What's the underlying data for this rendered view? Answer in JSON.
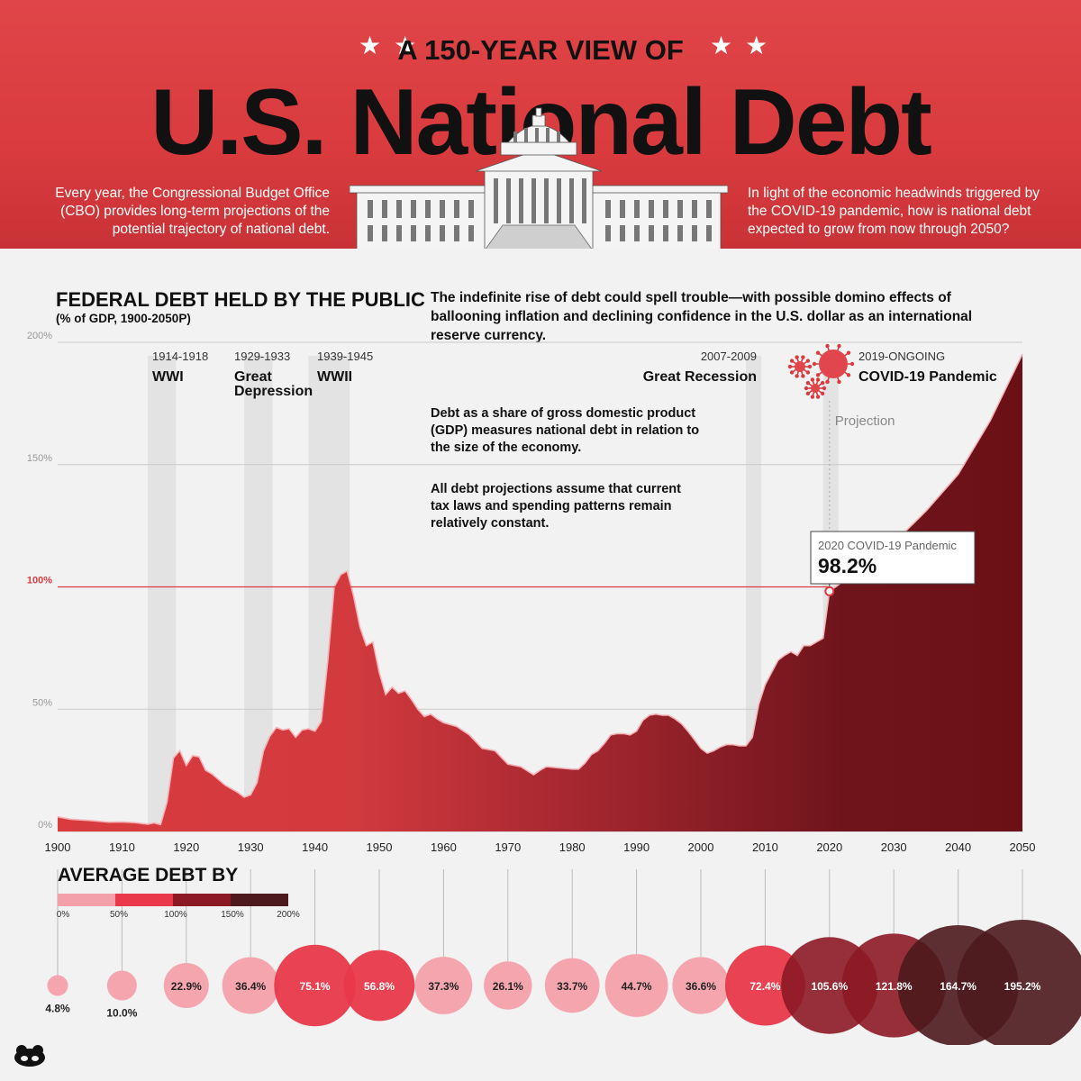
{
  "header": {
    "kicker": "A 150-YEAR VIEW OF",
    "title": "U.S. National Debt",
    "intro_left": "Every year, the Congressional Budget Office (CBO) provides long-term projections of the potential trajectory of national debt.",
    "intro_right": "In light of the economic headwinds triggered by the COVID-19 pandemic, how is national debt expected to grow from now through 2050?",
    "stars": "★★"
  },
  "chart_section": {
    "title": "FEDERAL DEBT HELD BY THE PUBLIC",
    "subtitle": "(% of GDP, 1900-2050P)",
    "headline_note": "The indefinite rise of debt could spell trouble—with possible domino effects of ballooning inflation and declining confidence in the U.S. dollar as an international reserve currency.",
    "note1": "Debt as a share of gross domestic product (GDP) measures national debt in relation to the size of the economy.",
    "note2": "All debt projections assume that current tax laws and spending patterns remain relatively constant.",
    "projection_label": "Projection",
    "callout_label": "2020 COVID-19 Pandemic",
    "callout_value": "98.2%"
  },
  "colors": {
    "accent": "#d93b3e",
    "dark": "#4a1217",
    "light_pink": "#f3a0aa",
    "pink": "#e8384a",
    "maroon": "#8c1a25",
    "very_dark": "#4d191d"
  },
  "chart_data": {
    "type": "area",
    "title": "FEDERAL DEBT HELD BY THE PUBLIC",
    "ylabel": "% of GDP",
    "xlim": [
      1900,
      2050
    ],
    "ylim": [
      0,
      200
    ],
    "x_ticks": [
      "1900",
      "1910",
      "1920",
      "1930",
      "1940",
      "1950",
      "1960",
      "1970",
      "1980",
      "1990",
      "2000",
      "2010",
      "2020",
      "2030",
      "2040",
      "2050"
    ],
    "y_ticks": [
      "0%",
      "50%",
      "100%",
      "150%",
      "200%"
    ],
    "reference_line": {
      "value": 100,
      "label": "100%"
    },
    "projection_start": 2020,
    "series": [
      {
        "name": "Federal debt held by the public",
        "x": [
          1900,
          1902,
          1905,
          1908,
          1910,
          1912,
          1914,
          1915,
          1916,
          1917,
          1918,
          1919,
          1920,
          1921,
          1922,
          1923,
          1924,
          1926,
          1928,
          1929,
          1930,
          1931,
          1932,
          1933,
          1934,
          1935,
          1936,
          1937,
          1938,
          1939,
          1940,
          1941,
          1942,
          1943,
          1944,
          1945,
          1946,
          1947,
          1948,
          1949,
          1950,
          1951,
          1952,
          1953,
          1954,
          1955,
          1956,
          1957,
          1958,
          1959,
          1960,
          1962,
          1964,
          1966,
          1968,
          1970,
          1972,
          1974,
          1975,
          1976,
          1978,
          1980,
          1981,
          1982,
          1983,
          1984,
          1985,
          1986,
          1987,
          1988,
          1989,
          1990,
          1991,
          1992,
          1993,
          1994,
          1995,
          1996,
          1997,
          1998,
          1999,
          2000,
          2001,
          2002,
          2003,
          2004,
          2005,
          2006,
          2007,
          2008,
          2009,
          2010,
          2011,
          2012,
          2013,
          2014,
          2015,
          2016,
          2017,
          2018,
          2019,
          2020,
          2022,
          2025,
          2030,
          2035,
          2040,
          2045,
          2050
        ],
        "values": [
          6,
          5,
          4.5,
          3.8,
          3.9,
          3.6,
          3,
          3.5,
          2.8,
          12,
          30,
          33,
          27,
          31,
          30.5,
          25,
          23.5,
          19,
          16,
          14,
          15,
          20,
          33,
          39,
          42.5,
          41.5,
          42,
          38.5,
          41.5,
          42,
          41,
          45,
          70,
          100,
          105,
          106.5,
          96.5,
          83.5,
          76,
          77.5,
          65,
          56,
          59,
          56.5,
          57.5,
          54,
          50,
          47,
          48,
          46,
          44.5,
          43,
          39.5,
          34,
          33,
          27.5,
          26.5,
          23.2,
          25,
          26.5,
          26,
          25.5,
          25.5,
          28,
          31.5,
          33,
          36,
          39.5,
          40,
          40,
          39.5,
          41,
          45.5,
          47.5,
          48,
          47.5,
          47.5,
          46,
          44,
          41,
          37.5,
          34,
          32,
          33,
          34.5,
          35.5,
          35.5,
          35,
          35,
          38.5,
          52,
          60,
          65,
          70,
          72,
          73.5,
          72,
          76,
          76,
          77.5,
          79,
          98.2,
          102,
          106,
          118,
          131,
          146,
          168,
          195.2
        ]
      }
    ],
    "events": [
      {
        "years": "1914-1918",
        "name": "WWI",
        "start": 1914,
        "end": 1918
      },
      {
        "years": "1929-1933",
        "name": "Great Depression",
        "start": 1929,
        "end": 1933
      },
      {
        "years": "1939-1945",
        "name": "WWII",
        "start": 1939,
        "end": 1945
      },
      {
        "years": "2007-2009",
        "name": "Great Recession",
        "start": 2007,
        "end": 2009
      },
      {
        "years": "2019-ONGOING",
        "name": "COVID-19 Pandemic",
        "start": 2019,
        "end": 2021
      }
    ],
    "averages": {
      "title": "AVERAGE DEBT BY",
      "legend": [
        "0%",
        "50%",
        "100%",
        "150%",
        "200%"
      ],
      "items": [
        {
          "decade": 1900,
          "value": 4.8,
          "label": "4.8%"
        },
        {
          "decade": 1910,
          "value": 10.0,
          "label": "10.0%"
        },
        {
          "decade": 1920,
          "value": 22.9,
          "label": "22.9%"
        },
        {
          "decade": 1930,
          "value": 36.4,
          "label": "36.4%"
        },
        {
          "decade": 1940,
          "value": 75.1,
          "label": "75.1%"
        },
        {
          "decade": 1950,
          "value": 56.8,
          "label": "56.8%"
        },
        {
          "decade": 1960,
          "value": 37.3,
          "label": "37.3%"
        },
        {
          "decade": 1970,
          "value": 26.1,
          "label": "26.1%"
        },
        {
          "decade": 1980,
          "value": 33.7,
          "label": "33.7%"
        },
        {
          "decade": 1990,
          "value": 44.7,
          "label": "44.7%"
        },
        {
          "decade": 2000,
          "value": 36.6,
          "label": "36.6%"
        },
        {
          "decade": 2010,
          "value": 72.4,
          "label": "72.4%"
        },
        {
          "decade": 2020,
          "value": 105.6,
          "label": "105.6%"
        },
        {
          "decade": 2030,
          "value": 121.8,
          "label": "121.8%"
        },
        {
          "decade": 2040,
          "value": 164.7,
          "label": "164.7%"
        },
        {
          "decade": 2050,
          "value": 195.2,
          "label": "195.2%"
        }
      ]
    }
  }
}
